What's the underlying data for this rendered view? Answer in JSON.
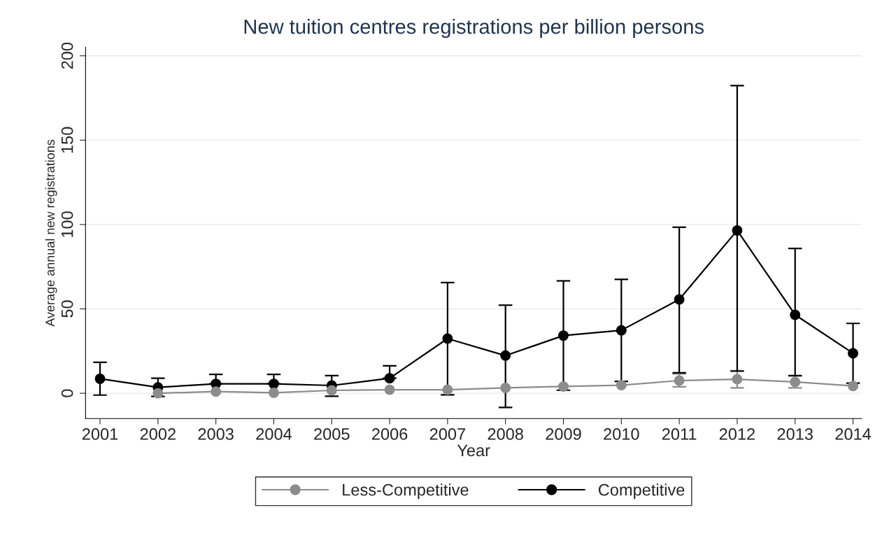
{
  "chart_data": {
    "type": "line",
    "title": "New tuition centres registrations per billion persons",
    "xlabel": "Year",
    "ylabel": "Average annual new registrations",
    "categories": [
      "2001",
      "2002",
      "2003",
      "2004",
      "2005",
      "2006",
      "2007",
      "2008",
      "2009",
      "2010",
      "2011",
      "2012",
      "2013",
      "2014"
    ],
    "series": [
      {
        "name": "Less-Competitive",
        "color": "#8c8c8c",
        "values": [
          null,
          0,
          1,
          0.3,
          1.7,
          2.1,
          2.1,
          3.2,
          4,
          4.8,
          7.5,
          8.3,
          6.7,
          4.3
        ],
        "errors": [
          null,
          null,
          null,
          null,
          null,
          null,
          null,
          null,
          null,
          null,
          [
            3.8,
            11.5
          ],
          [
            3.2,
            13.4
          ],
          [
            3.2,
            10.2
          ],
          null
        ]
      },
      {
        "name": "Competitive",
        "color": "#000000",
        "values": [
          8.6,
          3.5,
          5.6,
          5.6,
          4.6,
          8.9,
          32.4,
          22.3,
          34.2,
          37.3,
          55.6,
          96.5,
          46.5,
          23.7
        ],
        "errors": [
          [
            -1.1,
            18.3
          ],
          [
            -1.9,
            8.9
          ],
          [
            5.6,
            11.2
          ],
          [
            5.6,
            11.2
          ],
          [
            -1.8,
            10.5
          ],
          [
            8.9,
            16.3
          ],
          [
            -0.9,
            65.6
          ],
          [
            -8.4,
            52.2
          ],
          [
            1.8,
            66.6
          ],
          [
            7,
            67.5
          ],
          [
            12.1,
            98.4
          ],
          [
            13.1,
            182.3
          ],
          [
            10.5,
            85.8
          ],
          [
            6,
            41.4
          ]
        ]
      }
    ],
    "ylim": [
      -15,
      205
    ],
    "yticks": [
      0,
      50,
      100,
      150,
      200
    ],
    "grid": "y",
    "legend": "bottom",
    "marker": "circle",
    "line_style": "solid"
  }
}
